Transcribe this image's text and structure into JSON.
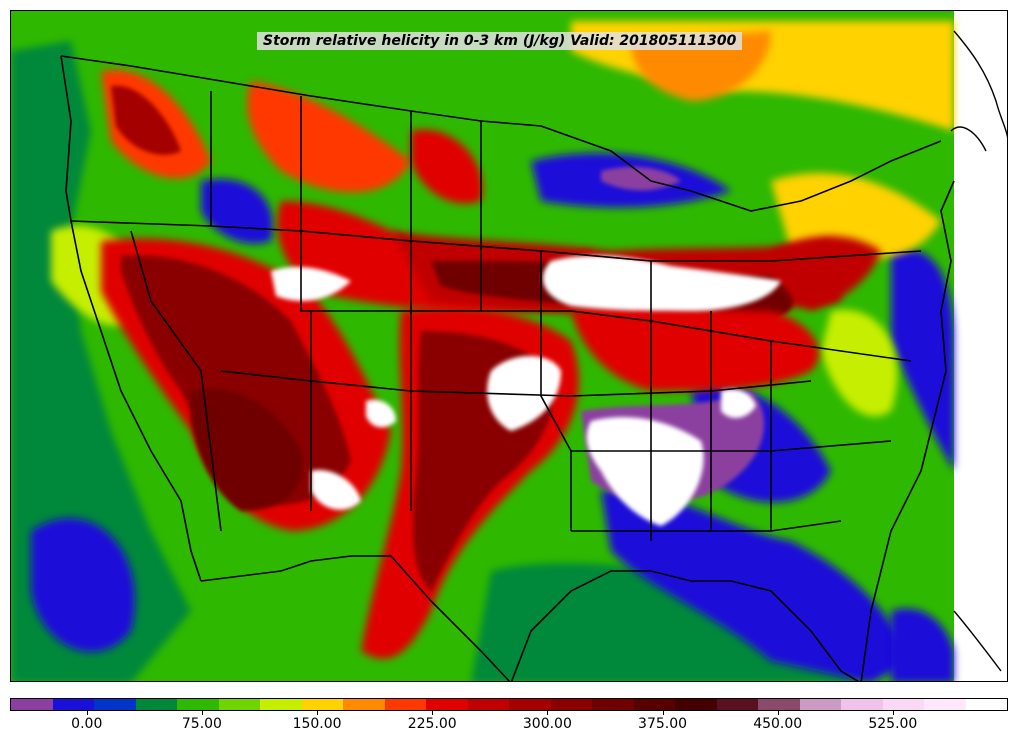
{
  "map": {
    "title": "Storm relative helicity in 0-3 km (J/kg) Valid: 201805111300",
    "variable": "Storm relative helicity in 0-3 km",
    "units": "J/kg",
    "valid_time": "201805111300",
    "region": "Contiguous United States",
    "background_colors": {
      "ocean_low": "#00883a",
      "base": "#2eb800"
    }
  },
  "colorbar": {
    "colors": [
      "#8b3fa0",
      "#1a10d8",
      "#0035c8",
      "#00883a",
      "#2eb800",
      "#6fd400",
      "#c6ee00",
      "#ffd200",
      "#ff8a00",
      "#ff3800",
      "#e00000",
      "#c00000",
      "#a40000",
      "#8a0000",
      "#700000",
      "#560000",
      "#440000",
      "#5a1020",
      "#8a4a6a",
      "#cc9ac4",
      "#f0c2ec",
      "#fad8f6",
      "#ffe8fc",
      "#ffffff"
    ],
    "tick_labels": [
      "0.00",
      "75.00",
      "150.00",
      "225.00",
      "300.00",
      "375.00",
      "450.00",
      "525.00"
    ],
    "tick_values": [
      0,
      75,
      150,
      225,
      300,
      375,
      450,
      525
    ],
    "range": [
      -50,
      600
    ]
  }
}
